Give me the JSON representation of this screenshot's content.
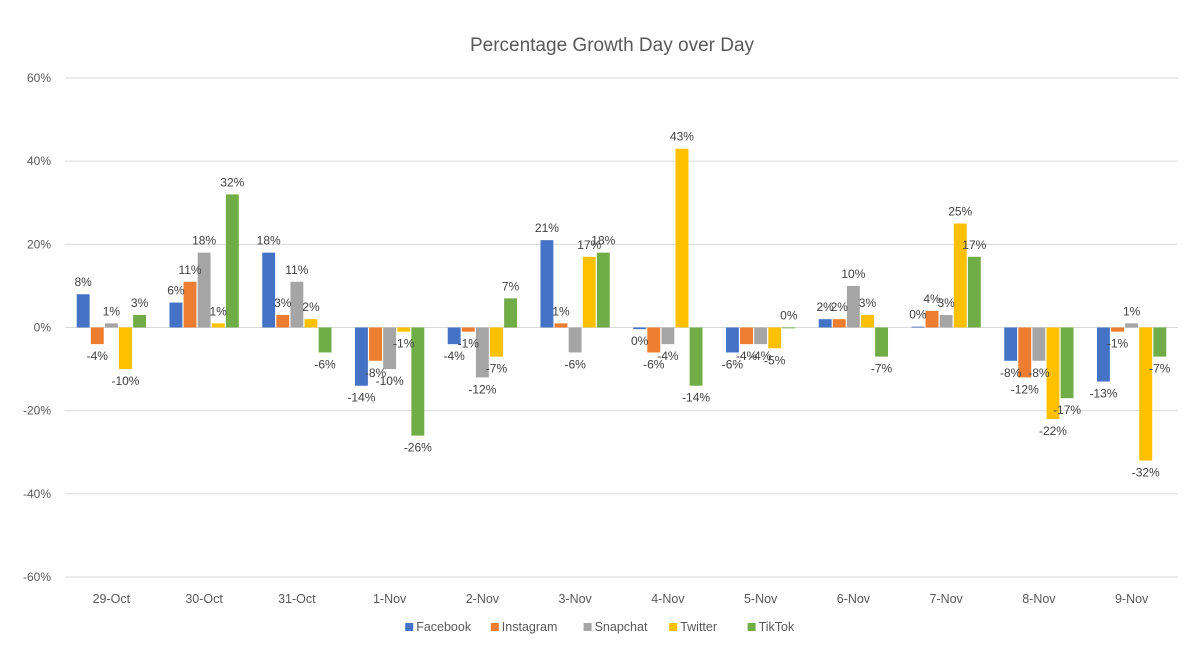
{
  "chart_data": {
    "type": "bar",
    "title": "Percentage Growth Day over Day",
    "xlabel": "",
    "ylabel": "",
    "ylim": [
      -60,
      60
    ],
    "yticks": [
      60,
      40,
      20,
      0,
      -20,
      -40,
      -60
    ],
    "ytick_labels": [
      "60%",
      "40%",
      "20%",
      "0%",
      "-20%",
      "-40%",
      "-60%"
    ],
    "grid": true,
    "legend_position": "bottom",
    "categories": [
      "29-Oct",
      "30-Oct",
      "31-Oct",
      "1-Nov",
      "2-Nov",
      "3-Nov",
      "4-Nov",
      "5-Nov",
      "6-Nov",
      "7-Nov",
      "8-Nov",
      "9-Nov"
    ],
    "series": [
      {
        "name": "Facebook",
        "color": "#4472c4",
        "values": [
          8,
          6,
          18,
          -14,
          -4,
          21,
          -0.4,
          -6,
          2,
          0.2,
          -8,
          -13
        ],
        "labels": [
          "8%",
          "6%",
          "18%",
          "-14%",
          "-4%",
          "21%",
          "0%",
          "-6%",
          "2%",
          "0%",
          "-8%",
          "-13%"
        ]
      },
      {
        "name": "Instagram",
        "color": "#ed7d31",
        "values": [
          -4,
          11,
          3,
          -8,
          -1,
          1,
          -6,
          -4,
          2,
          4,
          -12,
          -1
        ],
        "labels": [
          "-4%",
          "11%",
          "3%",
          "-8%",
          "-1%",
          "1%",
          "-6%",
          "-4%",
          "2%",
          "4%",
          "-12%",
          "-1%"
        ]
      },
      {
        "name": "Snapchat",
        "color": "#a5a5a5",
        "values": [
          1,
          18,
          11,
          -10,
          -12,
          -6,
          -4,
          -4,
          10,
          3,
          -8,
          1
        ],
        "labels": [
          "1%",
          "18%",
          "11%",
          "-10%",
          "-12%",
          "-6%",
          "-4%",
          "-4%",
          "10%",
          "3%",
          "-8%",
          "1%"
        ]
      },
      {
        "name": "Twitter",
        "color": "#ffc000",
        "values": [
          -10,
          1,
          2,
          -1,
          -7,
          17,
          43,
          -5,
          3,
          25,
          -22,
          -32
        ],
        "labels": [
          "-10%",
          "1%",
          "2%",
          "-1%",
          "-7%",
          "17%",
          "43%",
          "-5%",
          "3%",
          "25%",
          "-22%",
          "-32%"
        ]
      },
      {
        "name": "TikTok",
        "color": "#70ad47",
        "values": [
          3,
          32,
          -6,
          -26,
          7,
          18,
          -14,
          0,
          -7,
          17,
          -17,
          -7
        ],
        "labels": [
          "3%",
          "32%",
          "-6%",
          "-26%",
          "7%",
          "18%",
          "-14%",
          "0%",
          "-7%",
          "17%",
          "-17%",
          "-7%"
        ]
      }
    ]
  }
}
